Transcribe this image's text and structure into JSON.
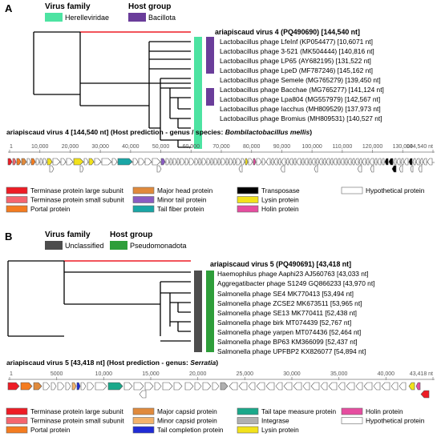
{
  "panel_a": {
    "letter": "A",
    "legend": {
      "virus_family_title": "Virus family",
      "virus_family_name": "Herelleviridae",
      "virus_family_color": "#4de3a2",
      "host_group_title": "Host group",
      "host_group_name": "Bacillota",
      "host_group_color": "#6a3d9a"
    },
    "tree_labels": [
      "ariapiscaud virus 4 (PQ490690)  [144,540 nt]",
      "Lactobacillus phage LfeInf (KP054477) [10,6071 nt]",
      "Lactobacillus phage 3-521 (MK504444) [140,816 nt]",
      "Lactobacillus phage LP65 (AY682195) [131,522 nt]",
      "Lactobacillus phage LpeD (MF787246) [145,162 nt]",
      "Lactobacillus phage Semele (MG765279) [139,450 nt]",
      "Lactobacillus phage Bacchae (MG765277) [141,124 nt]",
      "Lactobacillus phage Lpa804 (MG557979) [142,567 nt]",
      "Lactobacillus phage Iacchus (MH809529) [137,973 nt]",
      "Lactobacillus phage Bromius (MH809531) [140,527 nt]"
    ],
    "genome_title_main": "ariapiscaud virus 4  [144,540 nt] (Host prediction - genus / species: ",
    "genome_title_italic": "Bombilactobacillus mellis",
    "genome_title_end": ")",
    "scale_ticks": [
      "1",
      "10,000",
      "20,000",
      "30,000",
      "40,000",
      "50,000",
      "60,000",
      "70,000",
      "80,000",
      "90,000",
      "100,000",
      "110,000",
      "120,000",
      "130,000",
      "144,540 nt"
    ],
    "gene_legend": [
      {
        "label": "Terminase protein large subunit",
        "color": "#ee1c25"
      },
      {
        "label": "Terminase protein small subunit",
        "color": "#f4666e"
      },
      {
        "label": "Portal protein",
        "color": "#f47c20"
      },
      {
        "label": "Major head protein",
        "color": "#e08a3c"
      },
      {
        "label": "Minor tail protein",
        "color": "#8a5cc2"
      },
      {
        "label": "Tail fiber protein",
        "color": "#1aa6a6"
      },
      {
        "label": "Transposase",
        "color": "#000000"
      },
      {
        "label": "Lysin protein",
        "color": "#f2e21b"
      },
      {
        "label": "Holin protein",
        "color": "#e64da0"
      },
      {
        "label": "Hypothetical protein",
        "color": "#ffffff"
      }
    ]
  },
  "panel_b": {
    "letter": "B",
    "legend": {
      "virus_family_title": "Virus family",
      "virus_family_name": "Unclassified",
      "virus_family_color": "#4d4d4d",
      "host_group_title": "Host group",
      "host_group_name": "Pseudomonadota",
      "host_group_color": "#2e9e3a"
    },
    "tree_labels": [
      "ariapiscaud virus 5 (PQ490691) [43,418 nt]",
      "Haemophilus phage Aaphi23 AJ560763 [43,033 nt]",
      "Aggregatibacter phage S1249 GQ866233 [43,970 nt]",
      "Salmonella phage SE4 MK770413 [53,494 nt]",
      "Salmonella phage ZCSE2 MK673511 [53,965 nt]",
      "Salmonella phage SE13 MK770411 [52,438 nt]",
      "Salmonella phage birk MT074439 [52,767 nt]",
      "Salmonella phage yarpen MT074436 [52,464 nt]",
      "Salmonella phage BP63 KM366099 [52,437 nt]",
      "Salmonella phage UPFBP2 KX826077 [54,894 nt]"
    ],
    "genome_title_main": "ariapiscaud virus 5 [43,418 nt] (Host prediction - genus: ",
    "genome_title_italic": "Serratia",
    "genome_title_end": ")",
    "scale_ticks": [
      "1",
      "5000",
      "10,000",
      "15,000",
      "20,000",
      "25,000",
      "30,000",
      "35,000",
      "40,000",
      "43,418 nt"
    ],
    "gene_legend": [
      {
        "label": "Terminase protein large subunit",
        "color": "#ee1c25"
      },
      {
        "label": "Terminase protein small subunit",
        "color": "#f4666e"
      },
      {
        "label": "Portal protein",
        "color": "#f47c20"
      },
      {
        "label": "Major capsid protein",
        "color": "#e08a3c"
      },
      {
        "label": "Minor capsid protein",
        "color": "#f2b26b"
      },
      {
        "label": "Tail completion protein",
        "color": "#1f2bd6"
      },
      {
        "label": "Tail tape measure protein",
        "color": "#1aa88a"
      },
      {
        "label": "Integrase",
        "color": "#b0b0b0"
      },
      {
        "label": "Lysin protein",
        "color": "#f2e21b"
      },
      {
        "label": "Holin protein",
        "color": "#e64da0"
      },
      {
        "label": "Hypothetical protein",
        "color": "#ffffff"
      }
    ]
  },
  "colors": {
    "query_branch": "#ee1c25",
    "tree_line": "#000000",
    "arrow_stroke": "#555555"
  }
}
